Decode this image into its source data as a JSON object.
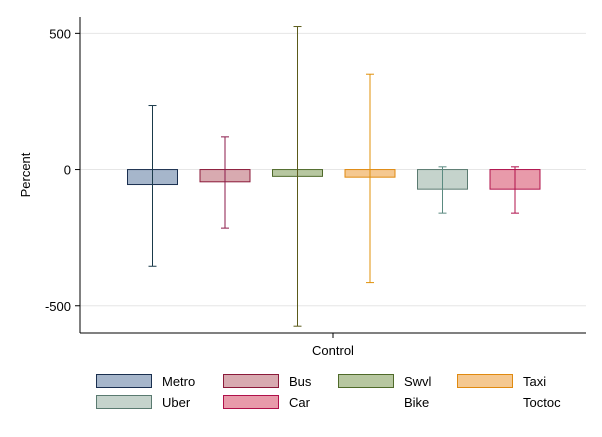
{
  "chart_data": {
    "type": "bar",
    "categories": [
      "Control"
    ],
    "xlabel": "Control",
    "ylabel": "Percent",
    "ylim": [
      -600,
      560
    ],
    "yticks": [
      500,
      0,
      -500
    ],
    "ytick_labels": [
      "500",
      "0",
      "-500"
    ],
    "grid": true,
    "legend_position": "bottom",
    "series": [
      {
        "name": "Metro",
        "value": -55,
        "ci": [
          -355,
          235
        ],
        "fill": "#a6b6cb",
        "stroke": "#1a2f4f",
        "err": "#1a3a4a"
      },
      {
        "name": "Bus",
        "value": -45,
        "ci": [
          -215,
          120
        ],
        "fill": "#d8aab0",
        "stroke": "#8b1a3a",
        "err": "#8b1a4a"
      },
      {
        "name": "Swvl",
        "value": -25,
        "ci": [
          -575,
          525
        ],
        "fill": "#b7c7a0",
        "stroke": "#4f6a2a",
        "err": "#5a5a1a"
      },
      {
        "name": "Taxi",
        "value": -28,
        "ci": [
          -415,
          350
        ],
        "fill": "#f5c890",
        "stroke": "#e08a10",
        "err": "#e0900a"
      },
      {
        "name": "Uber",
        "value": -72,
        "ci": [
          -160,
          10
        ],
        "fill": "#c5d3cc",
        "stroke": "#5a7a70",
        "err": "#5a8a80"
      },
      {
        "name": "Car",
        "value": -72,
        "ci": [
          -160,
          10
        ],
        "fill": "#e89aaa",
        "stroke": "#b0104a",
        "err": "#b0104a"
      },
      {
        "name": "Bike",
        "value": 0,
        "ci": null,
        "fill": null,
        "stroke": null,
        "err": null
      },
      {
        "name": "Toctoc",
        "value": 0,
        "ci": null,
        "fill": null,
        "stroke": null,
        "err": null
      }
    ]
  }
}
